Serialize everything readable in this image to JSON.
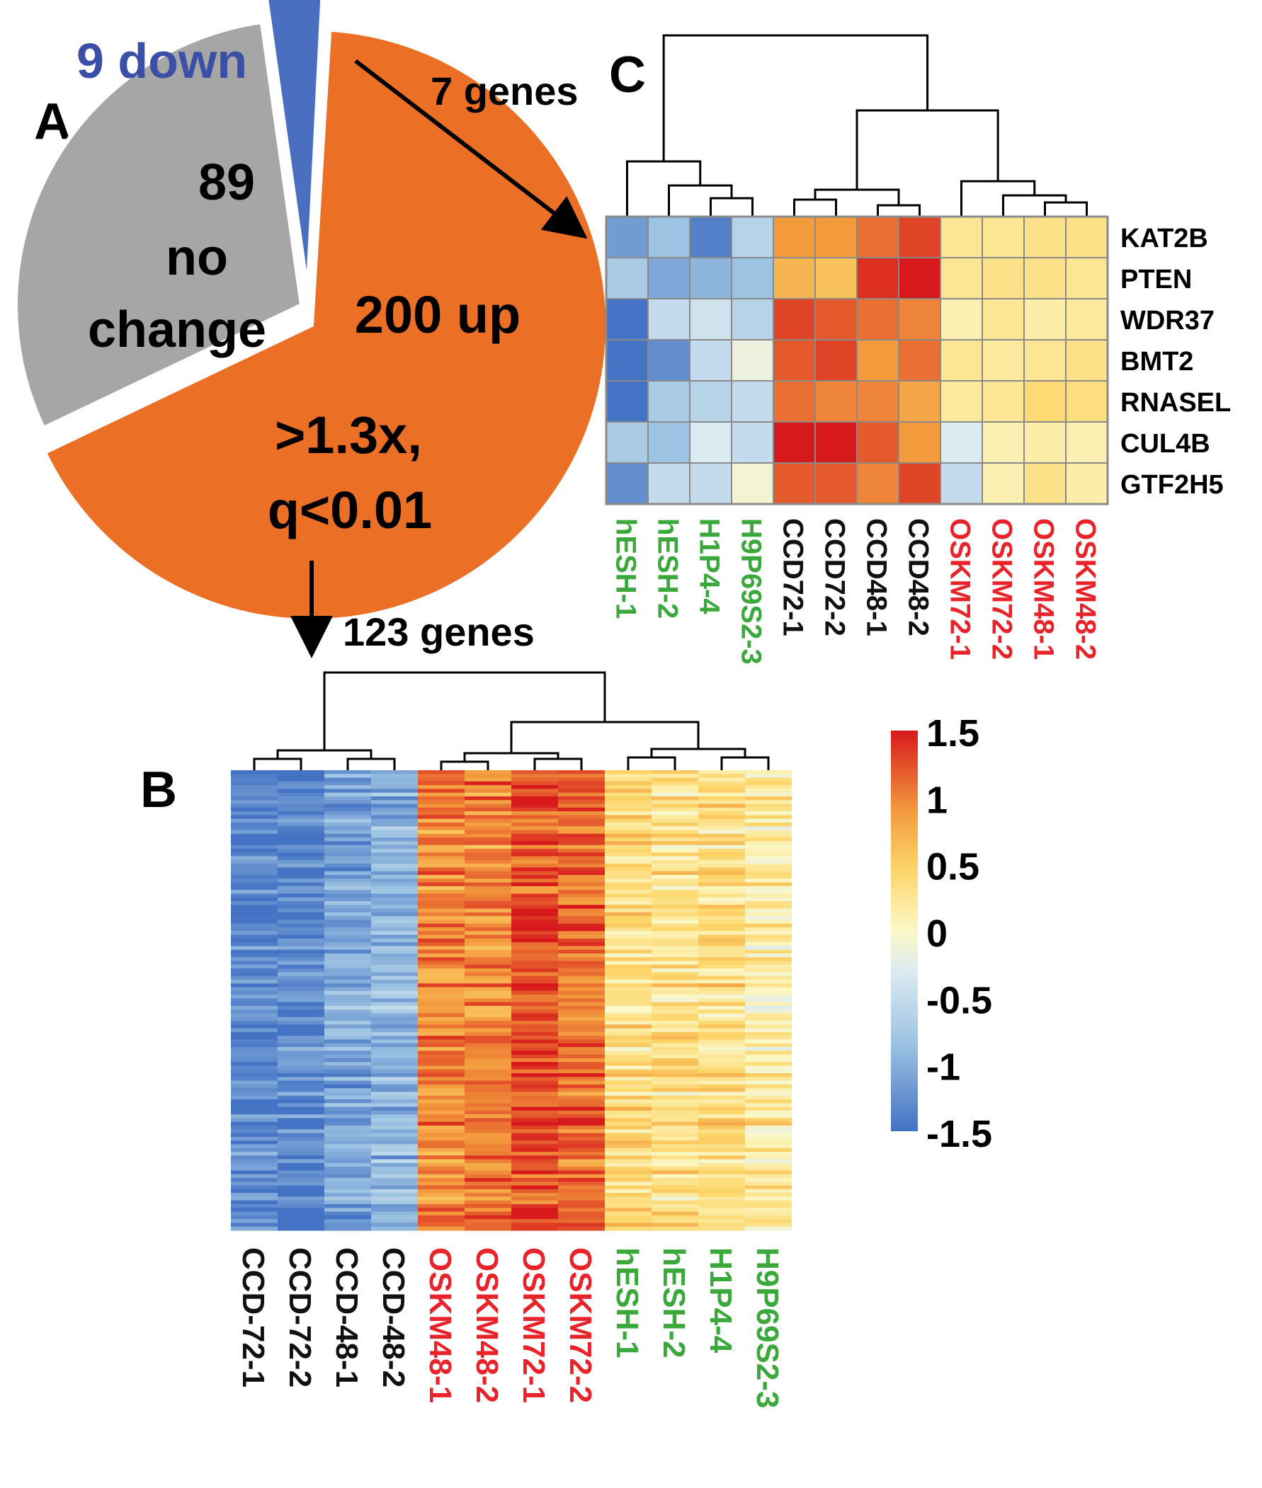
{
  "chart_data": [
    {
      "panel": "A",
      "type": "pie",
      "panel_label": "A",
      "slices": [
        {
          "name": "down",
          "value": 9,
          "label": "9 down",
          "color": "#4a6fc0"
        },
        {
          "name": "no change",
          "value": 89,
          "label_lines": [
            "89",
            "no",
            "change"
          ],
          "color": "#a6a6a6"
        },
        {
          "name": "up",
          "value": 200,
          "label_lines": [
            "200 up",
            ">1.3x,",
            "q<0.01"
          ],
          "color": "#ec6f26"
        }
      ],
      "annotations": {
        "down_genes": "7 genes",
        "up_genes": "123 genes"
      }
    },
    {
      "panel": "B",
      "type": "heatmap",
      "panel_label": "B",
      "columns": [
        {
          "label": "CCD-72-1",
          "color": "#111111",
          "group": "CCD"
        },
        {
          "label": "CCD-72-2",
          "color": "#111111",
          "group": "CCD"
        },
        {
          "label": "CCD-48-1",
          "color": "#111111",
          "group": "CCD"
        },
        {
          "label": "CCD-48-2",
          "color": "#111111",
          "group": "CCD"
        },
        {
          "label": "OSKM48-1",
          "color": "#e8232a",
          "group": "OSKM"
        },
        {
          "label": "OSKM48-2",
          "color": "#e8232a",
          "group": "OSKM"
        },
        {
          "label": "OSKM72-1",
          "color": "#e8232a",
          "group": "OSKM"
        },
        {
          "label": "OSKM72-2",
          "color": "#e8232a",
          "group": "OSKM"
        },
        {
          "label": "hESH-1",
          "color": "#3aa83a",
          "group": "ES"
        },
        {
          "label": "hESH-2",
          "color": "#3aa83a",
          "group": "ES"
        },
        {
          "label": "H1P4-4",
          "color": "#3aa83a",
          "group": "ES"
        },
        {
          "label": "H9P69S2-3",
          "color": "#3aa83a",
          "group": "ES"
        }
      ],
      "n_rows": 123,
      "column_means": [
        -1.35,
        -1.35,
        -1.1,
        -1.0,
        0.95,
        1.0,
        1.25,
        1.1,
        0.35,
        0.3,
        0.3,
        0.15
      ]
    },
    {
      "panel": "C",
      "type": "heatmap",
      "panel_label": "C",
      "rows": [
        "KAT2B",
        "PTEN",
        "WDR37",
        "BMT2",
        "RNASEL",
        "CUL4B",
        "GTF2H5"
      ],
      "columns": [
        {
          "label": "hESH-1",
          "color": "#3aa83a"
        },
        {
          "label": "hESH-2",
          "color": "#3aa83a"
        },
        {
          "label": "H1P4-4",
          "color": "#3aa83a"
        },
        {
          "label": "H9P69S2-3",
          "color": "#3aa83a"
        },
        {
          "label": "CCD72-1",
          "color": "#111111"
        },
        {
          "label": "CCD72-2",
          "color": "#111111"
        },
        {
          "label": "CCD48-1",
          "color": "#111111"
        },
        {
          "label": "CCD48-2",
          "color": "#111111"
        },
        {
          "label": "OSKM72-1",
          "color": "#e8232a"
        },
        {
          "label": "OSKM72-2",
          "color": "#e8232a"
        },
        {
          "label": "OSKM48-1",
          "color": "#e8232a"
        },
        {
          "label": "OSKM48-2",
          "color": "#e8232a"
        }
      ],
      "values": [
        [
          -1.2,
          -0.9,
          -1.4,
          -0.7,
          0.9,
          0.9,
          1.1,
          1.3,
          0.25,
          0.25,
          0.3,
          0.3
        ],
        [
          -0.8,
          -1.1,
          -1.0,
          -0.9,
          0.7,
          0.6,
          1.4,
          1.6,
          0.25,
          0.3,
          0.3,
          0.25
        ],
        [
          -1.6,
          -0.6,
          -0.5,
          -0.7,
          1.3,
          1.2,
          1.1,
          1.0,
          0.1,
          0.25,
          0.15,
          0.2
        ],
        [
          -1.5,
          -1.3,
          -0.6,
          -0.2,
          1.2,
          1.3,
          0.9,
          1.1,
          0.25,
          0.2,
          0.25,
          0.3
        ],
        [
          -1.6,
          -0.8,
          -0.7,
          -0.6,
          1.1,
          1.0,
          1.0,
          0.8,
          0.2,
          0.25,
          0.4,
          0.35
        ],
        [
          -0.8,
          -0.9,
          -0.4,
          -0.6,
          1.6,
          1.6,
          1.2,
          0.9,
          -0.4,
          0.1,
          0.15,
          0.1
        ],
        [
          -1.3,
          -0.6,
          -0.6,
          -0.1,
          1.2,
          1.2,
          1.0,
          1.3,
          -0.6,
          0.1,
          0.3,
          0.15
        ]
      ]
    }
  ],
  "legend": {
    "ticks": [
      "1.5",
      "1",
      "0.5",
      "0",
      "-0.5",
      "-1",
      "-1.5"
    ],
    "range": [
      -1.5,
      1.5
    ],
    "color_stops": [
      "#4472c4",
      "#c9e0ee",
      "#fbf8c7",
      "#fec64e",
      "#f07a35",
      "#d7191c"
    ]
  }
}
